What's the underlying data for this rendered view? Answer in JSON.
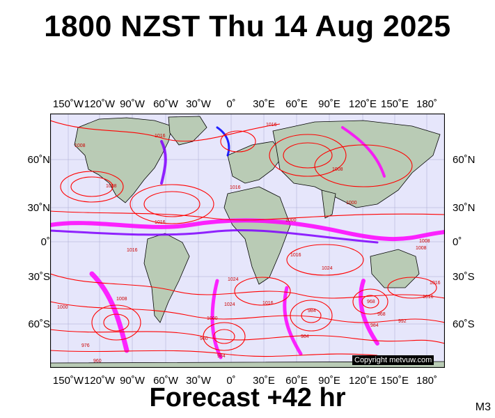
{
  "title": "1800 NZST Thu 14 Aug 2025",
  "footer": "Forecast +42 hr",
  "model": "M3",
  "copyright": "Copyright metvuw.com",
  "lon_labels": [
    "150˚W",
    "120˚W",
    "90˚W",
    "60˚W",
    "30˚W",
    "0˚",
    "30˚E",
    "60˚E",
    "90˚E",
    "120˚E",
    "150˚E",
    "180˚"
  ],
  "lat_labels": [
    "60˚N",
    "30˚N",
    "0˚",
    "30˚S",
    "60˚S"
  ],
  "pressure_labels": [
    "1008",
    "1016",
    "1016",
    "1008",
    "1016",
    "1016",
    "1000",
    "1008",
    "1000",
    "1016",
    "1024",
    "1016",
    "1008",
    "1016",
    "1024",
    "1016",
    "1000",
    "984",
    "1024",
    "1008",
    "984",
    "992",
    "960",
    "984",
    "968",
    "1000",
    "960",
    "976",
    "984",
    "968",
    "1016",
    "1008"
  ],
  "colors": {
    "ocean": "#e6e6fb",
    "land": "#b9cbb5",
    "isobar": "#ff0000",
    "precip": [
      "#ff00ff",
      "#8000ff",
      "#0000ff"
    ]
  }
}
